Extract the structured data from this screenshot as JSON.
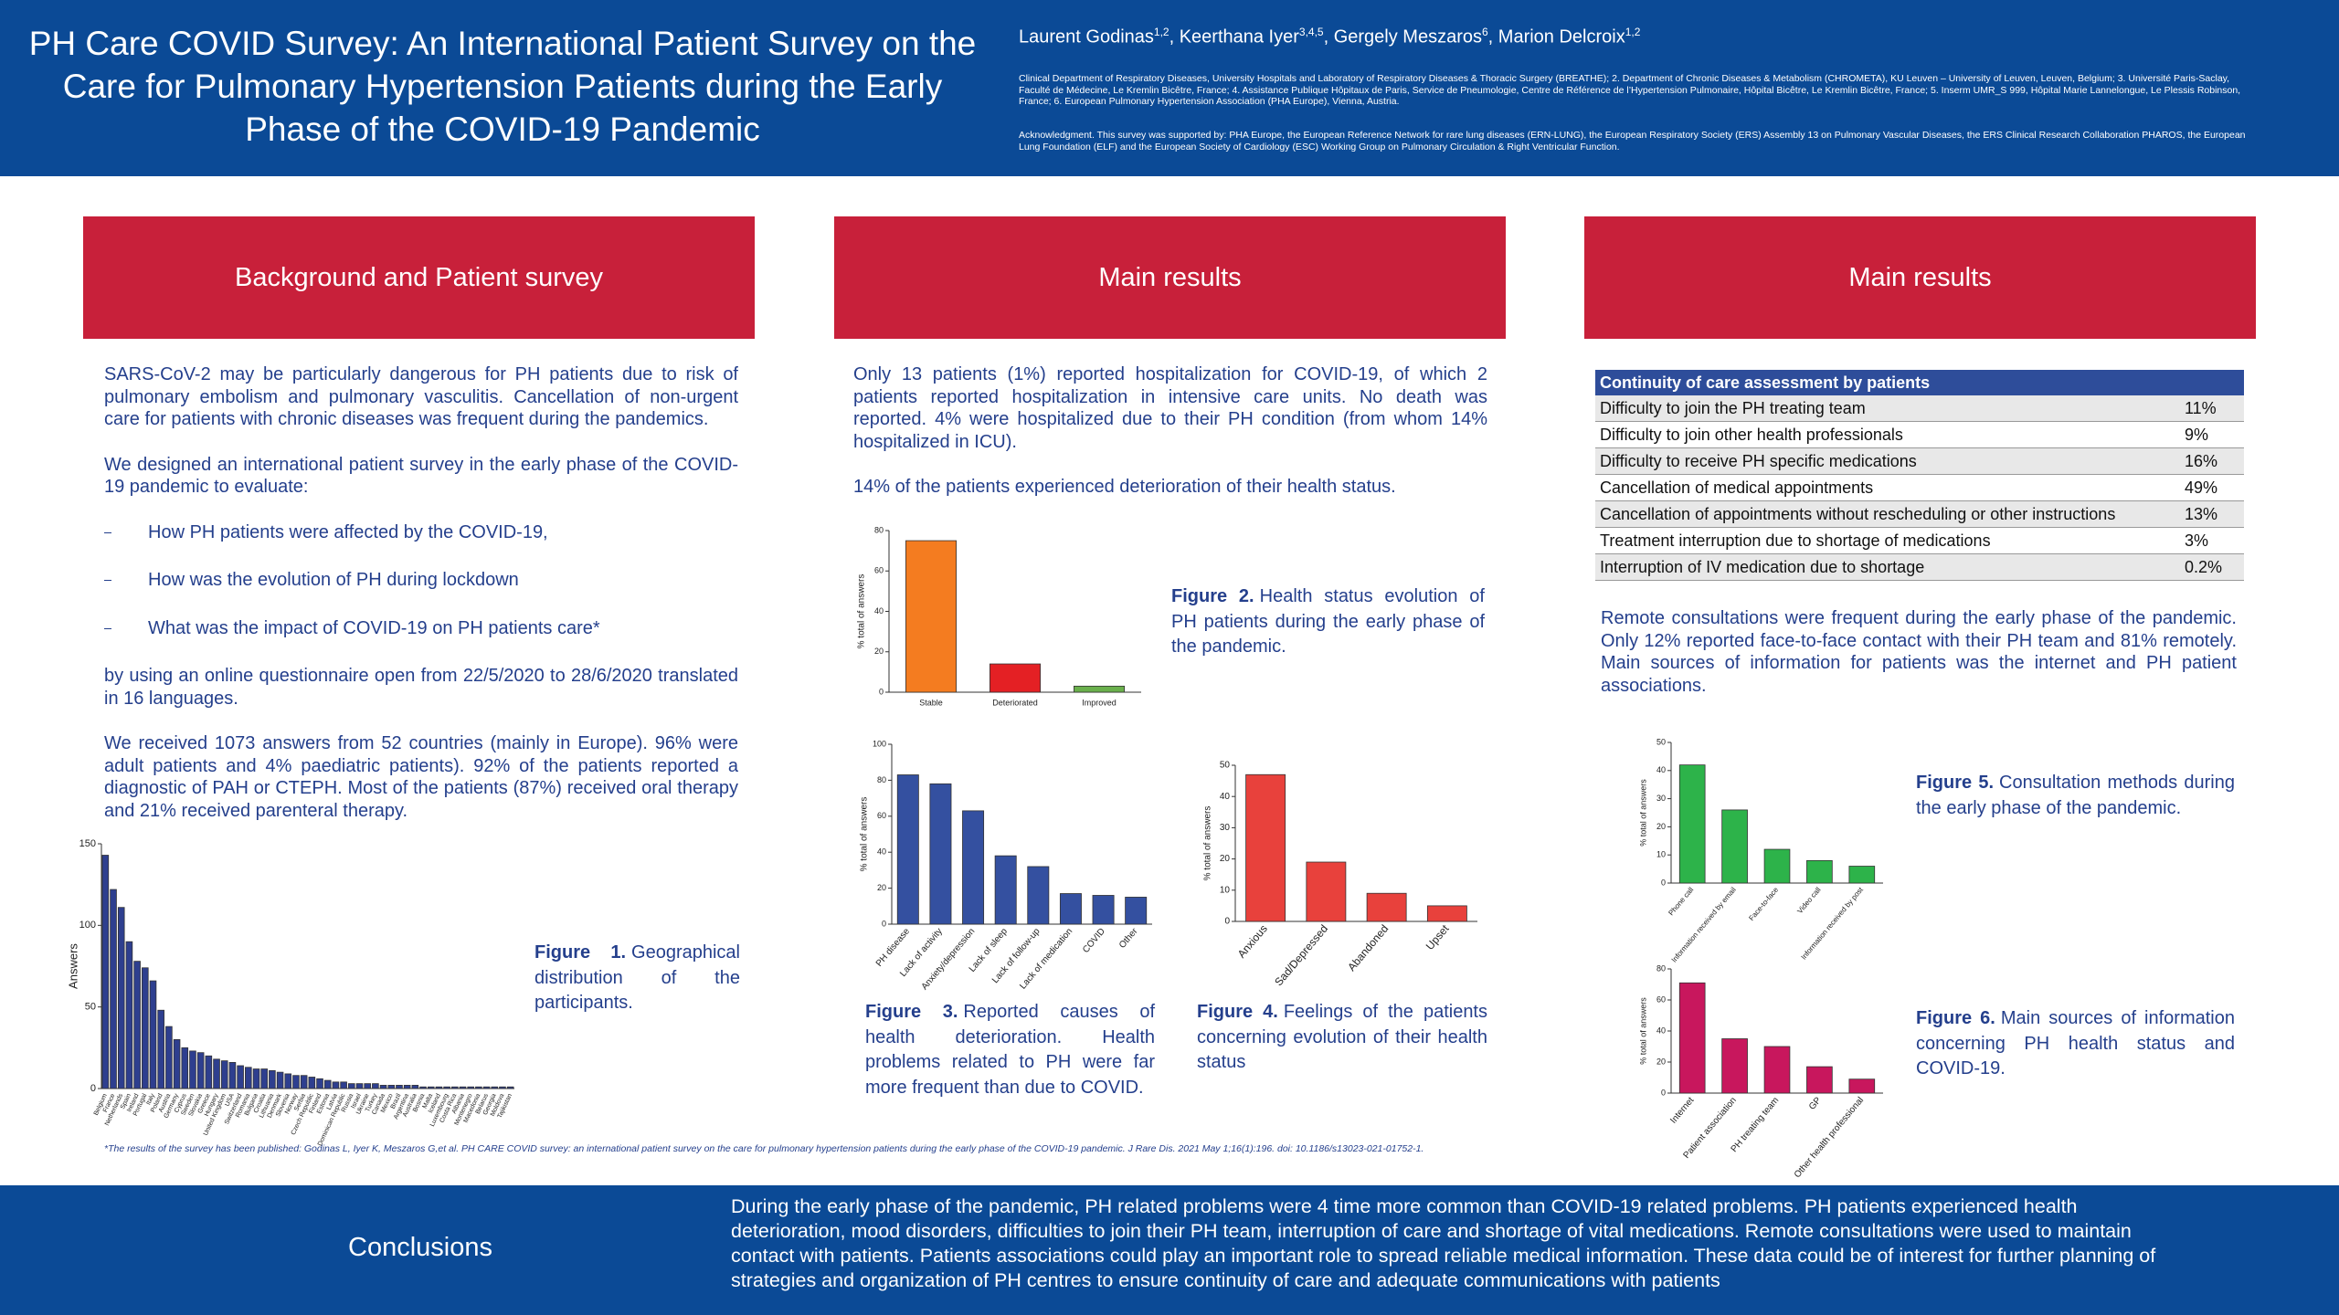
{
  "header": {
    "title": "PH Care COVID Survey: An International Patient Survey on the Care for Pulmonary Hypertension Patients during the Early Phase of the COVID-19 Pandemic",
    "authors": [
      {
        "name": "Laurent Godinas",
        "affil": "1,2"
      },
      {
        "name": ", Keerthana Iyer",
        "affil": "3,4,5"
      },
      {
        "name": ", Gergely Meszaros",
        "affil": "6"
      },
      {
        "name": ", Marion Delcroix",
        "affil": "1,2"
      }
    ],
    "affiliations": "Clinical Department of Respiratory Diseases, University Hospitals and Laboratory of Respiratory Diseases & Thoracic Surgery (BREATHE); 2. Department of Chronic Diseases & Metabolism (CHROMETA), KU Leuven – University of Leuven, Leuven, Belgium; 3. Université Paris-Saclay, Faculté de Médecine, Le Kremlin Bicêtre, France; 4. Assistance Publique Hôpitaux de Paris, Service de Pneumologie, Centre de Référence de l’Hypertension Pulmonaire, Hôpital Bicêtre, Le Kremlin Bicêtre, France; 5. Inserm UMR_S 999, Hôpital Marie Lannelongue, Le Plessis Robinson, France; 6. European Pulmonary Hypertension Association (PHA Europe), Vienna, Austria.",
    "acknowledgment": "Acknowledgment. This survey was supported by: PHA Europe, the European Reference Network for rare lung diseases (ERN-LUNG), the European Respiratory Society (ERS) Assembly 13 on Pulmonary Vascular Diseases, the ERS Clinical Research Collaboration PHAROS, the European Lung Foundation (ELF) and the European Society of Cardiology (ESC) Working Group on Pulmonary Circulation & Right Ventricular Function."
  },
  "sections": [
    {
      "title": "Background and Patient survey",
      "paragraphs": [
        "SARS-CoV-2 may be particularly dangerous for PH patients due to risk of pulmonary embolism and pulmonary vasculitis. Cancellation of non-urgent care for patients with chronic diseases was frequent during the pandemics.",
        "We designed an international patient survey in the early phase of the COVID-19 pandemic to evaluate:"
      ],
      "bullets": [
        "How PH patients were affected by the COVID-19,",
        "How was the evolution of PH during lockdown",
        "What was the impact of COVID-19 on PH patients care*"
      ],
      "paragraphs_after": [
        "by using an online questionnaire open from 22/5/2020 to 28/6/2020 translated in 16 languages.",
        "We received 1073 answers from 52 countries (mainly in Europe). 96% were adult patients and 4% paediatric patients). 92% of the patients reported a diagnostic of PAH or CTEPH. Most of the patients (87%) received oral therapy and 21% received parenteral therapy."
      ]
    },
    {
      "title": "Main results",
      "paragraphs": [
        "Only 13 patients (1%) reported hospitalization for COVID-19, of which 2 patients reported hospitalization in intensive care units. No death was reported. 4% were hospitalized due to their PH condition (from whom 14% hospitalized in ICU).",
        "14% of the patients experienced deterioration of their health status."
      ]
    },
    {
      "title": "Main results",
      "paragraphs": [
        "Remote consultations were frequent during the early phase of the pandemic. Only 12% reported face-to-face contact with their PH team and 81% remotely. Main sources of information for patients was the internet and PH patient associations."
      ]
    }
  ],
  "table": {
    "header": "Continuity of care assessment by patients",
    "rows": [
      [
        "Difficulty to join the PH treating team",
        "11%"
      ],
      [
        "Difficulty to join other health professionals",
        "9%"
      ],
      [
        "Difficulty to receive PH specific medications",
        "16%"
      ],
      [
        "Cancellation of medical appointments",
        "49%"
      ],
      [
        "Cancellation of appointments without rescheduling or other instructions",
        "13%"
      ],
      [
        "Treatment interruption due to shortage of medications",
        "3%"
      ],
      [
        "Interruption of IV medication due to shortage",
        "0.2%"
      ]
    ]
  },
  "captions": [
    {
      "label": "Figure 1.",
      "text": "Geographical distribution of the participants."
    },
    {
      "label": "Figure 2.",
      "text": "Health status evolution of PH patients during the early phase of the pandemic."
    },
    {
      "label": "Figure 3.",
      "text": "Reported causes of health deterioration. Health problems related to PH were far more frequent than due to COVID."
    },
    {
      "label": "Figure 4.",
      "text": "Feelings of the patients concerning evolution of their health status"
    },
    {
      "label": "Figure 5.",
      "text": "Consultation methods during the early phase of the pandemic."
    },
    {
      "label": "Figure 6.",
      "text": "Main sources of information concerning PH health status and COVID-19."
    }
  ],
  "footnote": "*The results of the survey has been published: Godinas L, Iyer K, Meszaros G,et al. PH CARE COVID survey: an international patient survey on the care for pulmonary hypertension patients during the early phase of the COVID-19 pandemic. J Rare Dis. 2021 May 1;16(1):196. doi: 10.1186/s13023-021-01752-1.",
  "conclusions": {
    "title": "Conclusions",
    "text": "During the early phase of the pandemic, PH related problems were 4 time more common than COVID-19 related problems. PH patients experienced health deterioration, mood disorders, difficulties to join their PH team, interruption of care and shortage of vital medications. Remote consultations were used to maintain contact with patients. Patients associations could play an important role to spread reliable medical information. These data could be of interest for further planning of strategies and organization of PH centres to ensure continuity of care and adequate communications with patients"
  },
  "chart_data": [
    {
      "type": "bar",
      "ylabel": "Answers",
      "color": "#2e3f8f",
      "categories": [
        "Belgium",
        "France",
        "Netherlands",
        "Spain",
        "Ireland",
        "Portugal",
        "Italy",
        "Poland",
        "Austria",
        "Germany",
        "Cyprus",
        "Sweden",
        "Slovakia",
        "Greece",
        "Hungary",
        "United Kingdom",
        "USA",
        "Switzerland",
        "Romania",
        "Bulgaria",
        "Croatia",
        "Lithuania",
        "Denmark",
        "Slovenia",
        "Norway",
        "Serbia",
        "Czech Republic",
        "Finland",
        "Estonia",
        "Latvia",
        "Dominican Republic",
        "Russia",
        "Israel",
        "Ukraine",
        "Turkey",
        "Canada",
        "Mexico",
        "Brazil",
        "Argentina",
        "Australia",
        "Bosnia",
        "Malta",
        "Iceland",
        "Luxembourg",
        "Costa Rica",
        "Albania",
        "Montenegro",
        "Macedonia",
        "Belarus",
        "Georgia",
        "Moldova",
        "Tajikistan"
      ],
      "values": [
        143,
        122,
        111,
        90,
        78,
        74,
        66,
        48,
        38,
        30,
        25,
        23,
        22,
        20,
        18,
        17,
        16,
        14,
        13,
        12,
        12,
        11,
        10,
        9,
        8,
        8,
        7,
        6,
        5,
        4,
        4,
        3,
        3,
        3,
        3,
        2,
        2,
        2,
        2,
        2,
        1,
        1,
        1,
        1,
        1,
        1,
        1,
        1,
        1,
        1,
        1,
        1
      ],
      "ylim": [
        0,
        150
      ],
      "yticks": [
        0,
        50,
        100,
        150
      ]
    },
    {
      "type": "bar",
      "ylabel": "% total of answers",
      "colors": [
        "#f47c20",
        "#e42024",
        "#6ab04c"
      ],
      "categories": [
        "Stable",
        "Deteriorated",
        "Improved"
      ],
      "values": [
        75,
        14,
        3
      ],
      "ylim": [
        0,
        80
      ],
      "yticks": [
        0,
        20,
        40,
        60,
        80
      ]
    },
    {
      "type": "bar",
      "ylabel": "% total of answers",
      "color": "#3450a0",
      "categories": [
        "PH disease",
        "Lack of activity",
        "Anxiety/depression",
        "Lack of sleep",
        "Lack of follow-up",
        "Lack of medication",
        "COVID",
        "Other"
      ],
      "values": [
        83,
        78,
        63,
        38,
        32,
        17,
        16,
        15
      ],
      "ylim": [
        0,
        100
      ],
      "yticks": [
        0,
        20,
        40,
        60,
        80,
        100
      ]
    },
    {
      "type": "bar",
      "ylabel": "% total of answers",
      "color": "#e8413c",
      "categories": [
        "Anxious",
        "Sad/Depressed",
        "Abandoned",
        "Upset"
      ],
      "values": [
        47,
        19,
        9,
        5
      ],
      "ylim": [
        0,
        50
      ],
      "yticks": [
        0,
        10,
        20,
        30,
        40,
        50
      ]
    },
    {
      "type": "bar",
      "ylabel": "% total of answers",
      "color": "#2db34a",
      "categories": [
        "Phone call",
        "Information received by email",
        "Face-to-face",
        "Video call",
        "Information received by post"
      ],
      "values": [
        42,
        26,
        12,
        8,
        6
      ],
      "ylim": [
        0,
        50
      ],
      "yticks": [
        0,
        10,
        20,
        30,
        40,
        50
      ]
    },
    {
      "type": "bar",
      "ylabel": "% total of answers",
      "color": "#c8175d",
      "categories": [
        "Internet",
        "Patient association",
        "PH treating team",
        "GP",
        "Other health professional"
      ],
      "values": [
        71,
        35,
        30,
        17,
        9
      ],
      "ylim": [
        0,
        80
      ],
      "yticks": [
        0,
        20,
        40,
        60,
        80
      ]
    }
  ]
}
